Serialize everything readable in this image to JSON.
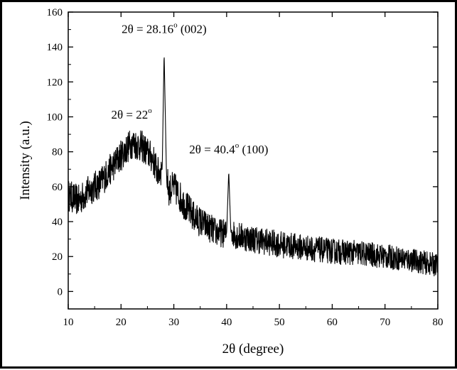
{
  "chart_data": {
    "type": "line",
    "title": "",
    "xlabel": "2θ (degree)",
    "ylabel": "Intensity (a.u.)",
    "xlim": [
      10,
      80
    ],
    "ylim": [
      -10,
      160
    ],
    "x_ticks": [
      10,
      20,
      30,
      40,
      50,
      60,
      70,
      80
    ],
    "y_ticks": [
      0,
      20,
      40,
      60,
      80,
      100,
      120,
      140,
      160
    ],
    "x_tick_labels": [
      "10",
      "20",
      "30",
      "40",
      "50",
      "60",
      "70",
      "80"
    ],
    "y_tick_labels": [
      "0",
      "20",
      "40",
      "60",
      "80",
      "100",
      "120",
      "140",
      "160"
    ],
    "grid": false,
    "legend": "none",
    "line_color": "#000000",
    "series": [
      {
        "x": [
          10,
          12,
          14,
          16,
          18,
          20,
          22,
          24,
          26,
          27,
          27.8,
          28.16,
          28.6,
          29,
          30,
          32,
          34,
          36,
          38,
          40,
          40.4,
          40.8,
          42,
          45,
          50,
          55,
          60,
          65,
          70,
          75,
          80
        ],
        "y": [
          55,
          52,
          58,
          62,
          70,
          78,
          85,
          83,
          76,
          68,
          70,
          137,
          68,
          58,
          60,
          50,
          42,
          38,
          34,
          33,
          69,
          34,
          32,
          30,
          27,
          25,
          23,
          22,
          20,
          18,
          15
        ],
        "noise_amplitude": 9
      }
    ],
    "annotations": [
      {
        "id": "peak-22",
        "text": "2θ = 22",
        "sup": "o",
        "suffix": "",
        "x": 22,
        "y": 99
      },
      {
        "id": "peak-28",
        "text": "2θ = 28.16",
        "sup": "o",
        "suffix": " (002)",
        "x": 28.16,
        "y": 148
      },
      {
        "id": "peak-40",
        "text": "2θ = 40.4",
        "sup": "o",
        "suffix": " (100)",
        "x": 40.4,
        "y": 79
      }
    ]
  }
}
